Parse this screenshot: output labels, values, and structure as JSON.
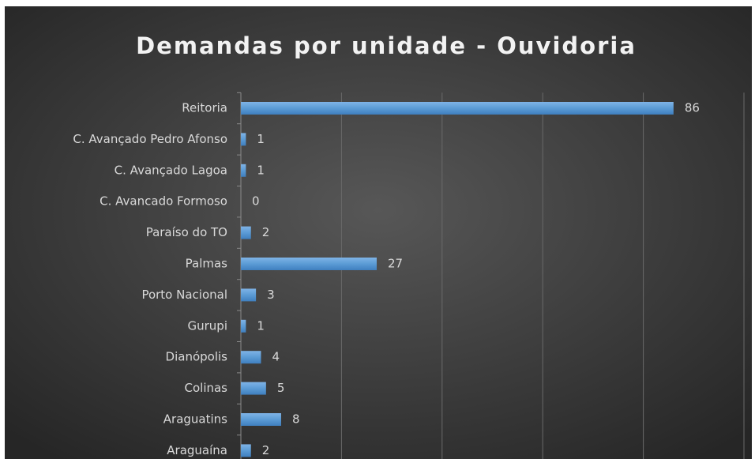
{
  "chart_data": {
    "type": "bar",
    "orientation": "horizontal",
    "title": "Demandas  por unidade  - Ouvidoria",
    "categories": [
      "Reitoria",
      "C. Avançado Pedro Afonso",
      "C. Avançado Lagoa",
      "C. Avancado Formoso",
      "Paraíso do TO",
      "Palmas",
      "Porto Nacional",
      "Gurupi",
      "Dianópolis",
      "Colinas",
      "Araguatins",
      "Araguaína"
    ],
    "values": [
      86,
      1,
      1,
      0,
      2,
      27,
      3,
      1,
      4,
      5,
      8,
      2
    ],
    "color": "#5b9bd5",
    "xlim": [
      0,
      100
    ],
    "xticks": [
      0,
      20,
      40,
      60,
      80,
      100
    ],
    "grid": true
  }
}
